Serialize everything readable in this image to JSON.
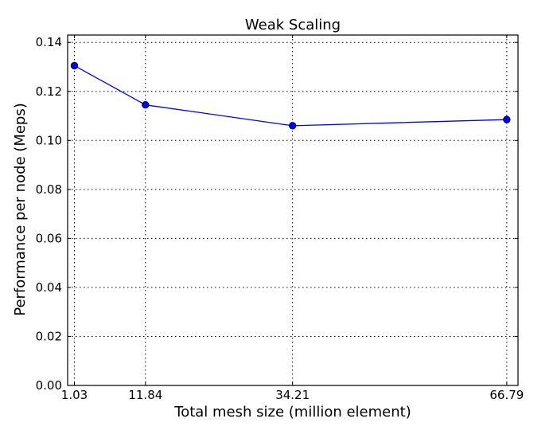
{
  "chart_data": {
    "type": "line",
    "title": "Weak Scaling",
    "xlabel": "Total mesh size (million element)",
    "ylabel": "Performance per node (Meps)",
    "x": [
      1.03,
      11.84,
      34.21,
      66.79
    ],
    "x_tick_labels": [
      "1.03",
      "11.84",
      "34.21",
      "66.79"
    ],
    "xlim": [
      0,
      68.5
    ],
    "ylim": [
      0,
      0.143
    ],
    "y_ticks": [
      0.0,
      0.02,
      0.04,
      0.06,
      0.08,
      0.1,
      0.12,
      0.14
    ],
    "y_tick_labels": [
      "0.00",
      "0.02",
      "0.04",
      "0.06",
      "0.08",
      "0.10",
      "0.12",
      "0.14"
    ],
    "grid": true,
    "series": [
      {
        "values": [
          0.1305,
          0.1145,
          0.106,
          0.1085
        ],
        "color": "#0000ff",
        "marker": "circle"
      }
    ]
  }
}
